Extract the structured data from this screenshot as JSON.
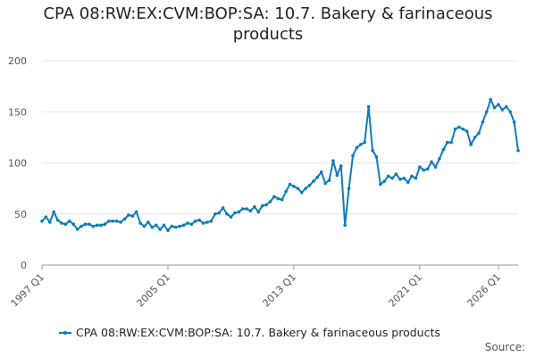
{
  "chart_data": {
    "type": "line",
    "title": "CPA 08:RW:EX:CVM:BOP:SA: 10.7. Bakery & farinaceous products",
    "source": "Source:",
    "categories": [
      "1997 Q1",
      null,
      null,
      null,
      null,
      null,
      null,
      null,
      null,
      null,
      null,
      null,
      null,
      null,
      null,
      null,
      null,
      null,
      null,
      null,
      null,
      null,
      null,
      null,
      null,
      null,
      null,
      null,
      null,
      null,
      null,
      null,
      "2005 Q1",
      null,
      null,
      null,
      null,
      null,
      null,
      null,
      null,
      null,
      null,
      null,
      null,
      null,
      null,
      null,
      null,
      null,
      null,
      null,
      null,
      null,
      null,
      null,
      null,
      null,
      null,
      null,
      null,
      null,
      null,
      null,
      "2013 Q1",
      null,
      null,
      null,
      null,
      null,
      null,
      null,
      null,
      null,
      null,
      null,
      null,
      null,
      null,
      null,
      null,
      null,
      null,
      null,
      null,
      null,
      null,
      null,
      null,
      null,
      null,
      null,
      null,
      null,
      null,
      null,
      "2021 Q1",
      null,
      null,
      null,
      null,
      null,
      null,
      null,
      null,
      null,
      null,
      null,
      null,
      null,
      null,
      null,
      null,
      null,
      null,
      null,
      "2026 Q1",
      null,
      null,
      null,
      null,
      null
    ],
    "series": [
      {
        "name": "CPA 08:RW:EX:CVM:BOP:SA: 10.7. Bakery & farinaceous products",
        "color": "#0f7cba",
        "values": [
          43,
          47,
          42,
          52,
          44,
          41,
          40,
          43,
          40,
          35,
          38,
          40,
          40,
          38,
          39,
          39,
          40,
          43,
          43,
          43,
          42,
          45,
          49,
          48,
          52,
          41,
          38,
          42,
          37,
          39,
          35,
          39,
          34,
          38,
          37,
          38,
          39,
          41,
          40,
          43,
          44,
          41,
          42,
          43,
          50,
          51,
          56,
          50,
          47,
          51,
          52,
          55,
          55,
          53,
          57,
          52,
          58,
          59,
          62,
          67,
          65,
          64,
          72,
          79,
          77,
          75,
          71,
          75,
          78,
          82,
          86,
          91,
          80,
          83,
          102,
          88,
          97,
          39,
          75,
          107,
          115,
          118,
          120,
          155,
          112,
          106,
          79,
          82,
          87,
          85,
          89,
          84,
          85,
          81,
          87,
          85,
          96,
          93,
          94,
          101,
          96,
          104,
          113,
          120,
          120,
          133,
          135,
          133,
          131,
          118,
          125,
          129,
          140,
          150,
          162,
          154,
          157,
          152,
          155,
          150,
          140,
          112
        ]
      }
    ],
    "ylim": [
      0,
      200
    ],
    "yticks": [
      0,
      50,
      100,
      150,
      200
    ],
    "grid": true,
    "legend": "bottom"
  }
}
